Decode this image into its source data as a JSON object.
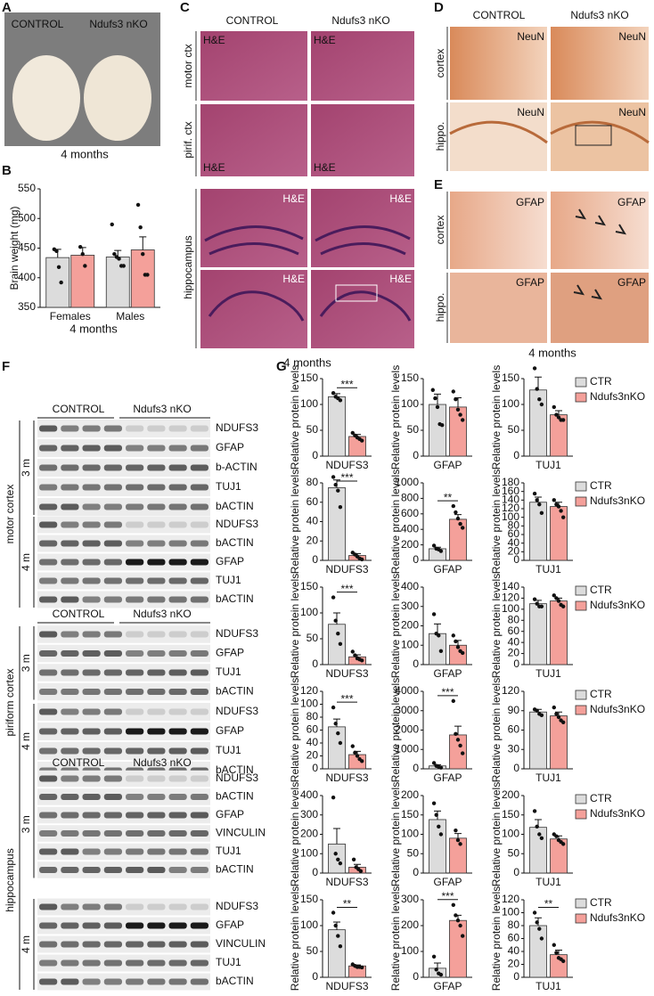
{
  "figure": {
    "A": {
      "label": "A",
      "columns": [
        "CONTROL",
        "Ndufs3 nKO"
      ],
      "caption": "4  months"
    },
    "B": {
      "label": "B",
      "caption": "4  months"
    },
    "C": {
      "label": "C",
      "columns": [
        "CONTROL",
        "Ndufs3 nKO"
      ],
      "rows": [
        "motor ctx",
        "pirif. ctx",
        "hippocampus"
      ],
      "stain": "H&E",
      "caption": "4 months"
    },
    "D": {
      "label": "D",
      "columns": [
        "CONTROL",
        "Ndufs3 nKO"
      ],
      "rows": [
        "cortex",
        "hippo."
      ],
      "stain": "NeuN"
    },
    "E": {
      "label": "E",
      "rows": [
        "cortex",
        "hippo."
      ],
      "stain": "GFAP",
      "caption": "4 months"
    },
    "F": {
      "label": "F",
      "regions": [
        {
          "name": "motor cortex",
          "columns": [
            "CONTROL",
            "Ndufs3 nKO"
          ],
          "blocks": [
            {
              "time": "3 m",
              "bands": [
                "NDUFS3",
                "GFAP",
                "b-ACTIN",
                "TUJ1",
                "bACTIN"
              ]
            },
            {
              "time": "4 m",
              "bands": [
                "NDUFS3",
                "bACTIN",
                "GFAP",
                "TUJ1",
                "bACTIN"
              ]
            }
          ]
        },
        {
          "name": "piriform cortex",
          "columns": [
            "CONTROL",
            "Ndufs3 nKO"
          ],
          "blocks": [
            {
              "time": "3 m",
              "bands": [
                "NDUFS3",
                "GFAP",
                "TUJ1",
                "bACTIN"
              ]
            },
            {
              "time": "4 m",
              "bands": [
                "NDUFS3",
                "GFAP",
                "TUJ1",
                "bACTIN"
              ]
            }
          ]
        },
        {
          "name": "hippocampus",
          "columns": [
            "CONTROL",
            "Ndufs3 nKO"
          ],
          "blocks": [
            {
              "time": "3 m",
              "bands": [
                "NDUFS3",
                "bACTIN",
                "GFAP",
                "VINCULIN",
                "TUJ1",
                "bACTIN"
              ]
            },
            {
              "time": "4 m",
              "bands": [
                "NDUFS3",
                "GFAP",
                "VINCULIN",
                "TUJ1",
                "bACTIN"
              ]
            }
          ]
        }
      ]
    },
    "G": {
      "label": "G"
    }
  },
  "chart_data": [
    {
      "type": "bar",
      "ylabel": "Brain weight (mg)",
      "categories": [
        "Females",
        "Males"
      ],
      "ylim": [
        350,
        550
      ],
      "yticks": [
        350,
        400,
        450,
        500,
        550
      ],
      "series": [
        {
          "color": "#dcdcdc",
          "values": [
            434,
            435
          ],
          "errors": [
            14,
            11
          ],
          "points": [
            [
              448,
              445,
              418,
              392
            ],
            [
              490,
              440,
              435,
              432,
              420,
              420
            ]
          ]
        },
        {
          "color": "#f4a09a",
          "values": [
            438,
            447
          ],
          "errors": [
            13,
            22
          ],
          "points": [
            [
              452,
              440,
              420
            ],
            [
              523,
              485,
              440,
              405,
              405
            ]
          ]
        }
      ]
    },
    {
      "type": "bar",
      "ylabel": "Relative protein levels",
      "xlabel": "NDUFS3",
      "ylim": [
        0,
        150
      ],
      "yticks": [
        0,
        50,
        100,
        150
      ],
      "significance": "***",
      "series": [
        {
          "color": "#dcdcdc",
          "values": [
            115
          ],
          "errors": [
            6
          ],
          "points": [
            [
              122,
              115,
              112,
              108
            ]
          ]
        },
        {
          "color": "#f4a09a",
          "values": [
            38
          ],
          "errors": [
            4
          ],
          "points": [
            [
              45,
              40,
              36,
              33,
              30
            ]
          ]
        }
      ]
    },
    {
      "type": "bar",
      "ylabel": "Relative protein levels",
      "xlabel": "GFAP",
      "ylim": [
        0,
        150
      ],
      "yticks": [
        0,
        50,
        100,
        150
      ],
      "series": [
        {
          "color": "#dcdcdc",
          "values": [
            100
          ],
          "errors": [
            20
          ],
          "points": [
            [
              128,
              112,
              95,
              62,
              60
            ]
          ]
        },
        {
          "color": "#f4a09a",
          "values": [
            95
          ],
          "errors": [
            18
          ],
          "points": [
            [
              125,
              110,
              90,
              80,
              70
            ]
          ]
        }
      ]
    },
    {
      "type": "bar",
      "ylabel": "Relative protein levels",
      "xlabel": "TUJ1",
      "ylim": [
        0,
        150
      ],
      "yticks": [
        0,
        50,
        100,
        150
      ],
      "series": [
        {
          "name": "CTR",
          "color": "#dcdcdc",
          "values": [
            128
          ],
          "errors": [
            25
          ],
          "points": [
            [
              170,
              130,
              110,
              100
            ]
          ]
        },
        {
          "name": "Ndufs3nKO",
          "color": "#f4a09a",
          "values": [
            80
          ],
          "errors": [
            8
          ],
          "points": [
            [
              95,
              80,
              75,
              70,
              70
            ]
          ]
        }
      ]
    },
    {
      "type": "bar",
      "ylabel": "Relative protein levels",
      "xlabel": "NDUFS3",
      "ylim": [
        0,
        80
      ],
      "yticks": [
        0,
        20,
        40,
        60,
        80
      ],
      "significance": "***",
      "series": [
        {
          "color": "#dcdcdc",
          "values": [
            75
          ],
          "errors": [
            8
          ],
          "points": [
            [
              86,
              78,
              72,
              55
            ]
          ]
        },
        {
          "color": "#f4a09a",
          "values": [
            5
          ],
          "errors": [
            2
          ],
          "points": [
            [
              8,
              6,
              4,
              2,
              1
            ]
          ]
        }
      ]
    },
    {
      "type": "bar",
      "ylabel": "Relative protein levels",
      "xlabel": "GFAP",
      "ylim": [
        0,
        1000
      ],
      "yticks": [
        0,
        200,
        400,
        600,
        800,
        1000
      ],
      "significance": "**",
      "series": [
        {
          "color": "#dcdcdc",
          "values": [
            150
          ],
          "errors": [
            20
          ],
          "points": [
            [
              190,
              150,
              140,
              120
            ]
          ]
        },
        {
          "color": "#f4a09a",
          "values": [
            530
          ],
          "errors": [
            60
          ],
          "points": [
            [
              700,
              620,
              540,
              470,
              420
            ]
          ]
        }
      ]
    },
    {
      "type": "bar",
      "ylabel": "Relative protein levels",
      "xlabel": "TUJ1",
      "ylim": [
        0,
        180
      ],
      "yticks": [
        0,
        20,
        40,
        60,
        80,
        100,
        120,
        140,
        160,
        180
      ],
      "series": [
        {
          "name": "CTR",
          "color": "#dcdcdc",
          "values": [
            135
          ],
          "errors": [
            12
          ],
          "points": [
            [
              155,
              140,
              130,
              110
            ]
          ]
        },
        {
          "name": "Ndufs3nKO",
          "color": "#f4a09a",
          "values": [
            125
          ],
          "errors": [
            10
          ],
          "points": [
            [
              140,
              130,
              125,
              115,
              100
            ]
          ]
        }
      ]
    },
    {
      "type": "bar",
      "ylabel": "Relative protein levels",
      "xlabel": "NDUFS3",
      "ylim": [
        0,
        150
      ],
      "yticks": [
        0,
        50,
        100,
        150
      ],
      "significance": "***",
      "series": [
        {
          "color": "#dcdcdc",
          "values": [
            78
          ],
          "errors": [
            22
          ],
          "points": [
            [
              130,
              85,
              60,
              40
            ]
          ]
        },
        {
          "color": "#f4a09a",
          "values": [
            15
          ],
          "errors": [
            4
          ],
          "points": [
            [
              25,
              18,
              12,
              10,
              8
            ]
          ]
        }
      ]
    },
    {
      "type": "bar",
      "ylabel": "Relative protein levels",
      "xlabel": "GFAP",
      "ylim": [
        0,
        400
      ],
      "yticks": [
        0,
        100,
        200,
        300,
        400
      ],
      "series": [
        {
          "color": "#dcdcdc",
          "values": [
            160
          ],
          "errors": [
            50
          ],
          "points": [
            [
              260,
              160,
              150,
              70
            ]
          ]
        },
        {
          "color": "#f4a09a",
          "values": [
            100
          ],
          "errors": [
            25
          ],
          "points": [
            [
              150,
              120,
              90,
              70,
              60
            ]
          ]
        }
      ]
    },
    {
      "type": "bar",
      "ylabel": "Relative protein levels",
      "xlabel": "TUJ1",
      "ylim": [
        0,
        140
      ],
      "yticks": [
        0,
        20,
        40,
        60,
        80,
        100,
        120,
        140
      ],
      "series": [
        {
          "name": "CTR",
          "color": "#dcdcdc",
          "values": [
            110
          ],
          "errors": [
            6
          ],
          "points": [
            [
              118,
              110,
              105,
              105
            ]
          ]
        },
        {
          "name": "Ndufs3nKO",
          "color": "#f4a09a",
          "values": [
            115
          ],
          "errors": [
            5
          ],
          "points": [
            [
              125,
              120,
              115,
              108,
              105
            ]
          ]
        }
      ]
    },
    {
      "type": "bar",
      "ylabel": "Relative protein levels",
      "xlabel": "NDUFS3",
      "ylim": [
        0,
        120
      ],
      "yticks": [
        0,
        20,
        40,
        60,
        80,
        100,
        120
      ],
      "significance": "***",
      "series": [
        {
          "color": "#dcdcdc",
          "values": [
            65
          ],
          "errors": [
            12
          ],
          "points": [
            [
              95,
              70,
              55,
              40
            ]
          ]
        },
        {
          "color": "#f4a09a",
          "values": [
            22
          ],
          "errors": [
            5
          ],
          "points": [
            [
              35,
              25,
              20,
              15,
              12
            ]
          ]
        }
      ]
    },
    {
      "type": "bar",
      "ylabel": "Relative protein levels",
      "xlabel": "GFAP",
      "ylim": [
        0,
        4000
      ],
      "yticks": [
        0,
        1000,
        2000,
        3000,
        4000
      ],
      "significance": "***",
      "series": [
        {
          "color": "#dcdcdc",
          "values": [
            150
          ],
          "errors": [
            60
          ],
          "points": [
            [
              300,
              150,
              100,
              60
            ]
          ]
        },
        {
          "color": "#f4a09a",
          "values": [
            1750
          ],
          "errors": [
            450
          ],
          "points": [
            [
              3500,
              1800,
              1500,
              1200,
              800
            ]
          ]
        }
      ]
    },
    {
      "type": "bar",
      "ylabel": "Relative protein levels",
      "xlabel": "TUJ1",
      "ylim": [
        0,
        120
      ],
      "yticks": [
        0,
        30,
        60,
        90,
        120
      ],
      "series": [
        {
          "name": "CTR",
          "color": "#dcdcdc",
          "values": [
            88
          ],
          "errors": [
            4
          ],
          "points": [
            [
              92,
              90,
              85,
              83
            ]
          ]
        },
        {
          "name": "Ndufs3nKO",
          "color": "#f4a09a",
          "values": [
            82
          ],
          "errors": [
            6
          ],
          "points": [
            [
              95,
              85,
              80,
              75,
              72
            ]
          ]
        }
      ]
    },
    {
      "type": "bar",
      "ylabel": "Relative protein levels",
      "xlabel": "NDUFS3",
      "ylim": [
        0,
        400
      ],
      "yticks": [
        0,
        100,
        200,
        300,
        400
      ],
      "series": [
        {
          "color": "#dcdcdc",
          "values": [
            150
          ],
          "errors": [
            80
          ],
          "points": [
            [
              390,
              100,
              70,
              50
            ]
          ]
        },
        {
          "color": "#f4a09a",
          "values": [
            30
          ],
          "errors": [
            15
          ],
          "points": [
            [
              70,
              30,
              20,
              10
            ]
          ]
        }
      ]
    },
    {
      "type": "bar",
      "ylabel": "Relative protein levels",
      "xlabel": "GFAP",
      "ylim": [
        0,
        200
      ],
      "yticks": [
        0,
        50,
        100,
        150,
        200
      ],
      "series": [
        {
          "color": "#dcdcdc",
          "values": [
            138
          ],
          "errors": [
            22
          ],
          "points": [
            [
              180,
              150,
              120,
              100
            ]
          ]
        },
        {
          "color": "#f4a09a",
          "values": [
            90
          ],
          "errors": [
            12
          ],
          "points": [
            [
              110,
              85,
              75
            ]
          ]
        }
      ]
    },
    {
      "type": "bar",
      "ylabel": "Relative protein levels",
      "xlabel": "TUJ1",
      "ylim": [
        0,
        200
      ],
      "yticks": [
        0,
        50,
        100,
        150,
        200
      ],
      "series": [
        {
          "name": "CTR",
          "color": "#dcdcdc",
          "values": [
            118
          ],
          "errors": [
            20
          ],
          "points": [
            [
              160,
              120,
              100,
              90
            ]
          ]
        },
        {
          "name": "Ndufs3nKO",
          "color": "#f4a09a",
          "values": [
            88
          ],
          "errors": [
            8
          ],
          "points": [
            [
              100,
              95,
              85,
              80,
              75
            ]
          ]
        }
      ]
    },
    {
      "type": "bar",
      "ylabel": "Relative protein levels",
      "xlabel": "NDUFS3",
      "ylim": [
        0,
        150
      ],
      "yticks": [
        0,
        50,
        100,
        150
      ],
      "significance": "**",
      "series": [
        {
          "color": "#dcdcdc",
          "values": [
            92
          ],
          "errors": [
            15
          ],
          "points": [
            [
              125,
              100,
              80,
              60
            ]
          ]
        },
        {
          "color": "#f4a09a",
          "values": [
            22
          ],
          "errors": [
            2
          ],
          "points": [
            [
              25,
              22,
              20,
              20,
              19
            ]
          ]
        }
      ]
    },
    {
      "type": "bar",
      "ylabel": "Relative protein levels",
      "xlabel": "GFAP",
      "ylim": [
        0,
        300
      ],
      "yticks": [
        0,
        100,
        200,
        300
      ],
      "significance": "***",
      "series": [
        {
          "color": "#dcdcdc",
          "values": [
            35
          ],
          "errors": [
            20
          ],
          "points": [
            [
              80,
              30,
              15,
              10
            ]
          ]
        },
        {
          "color": "#f4a09a",
          "values": [
            220
          ],
          "errors": [
            20
          ],
          "points": [
            [
              280,
              240,
              220,
              200,
              160
            ]
          ]
        }
      ]
    },
    {
      "type": "bar",
      "ylabel": "Relative protein levels",
      "xlabel": "TUJ1",
      "ylim": [
        0,
        120
      ],
      "yticks": [
        0,
        20,
        40,
        60,
        80,
        100,
        120
      ],
      "significance": "**",
      "series": [
        {
          "name": "CTR",
          "color": "#dcdcdc",
          "values": [
            80
          ],
          "errors": [
            12
          ],
          "points": [
            [
              100,
              85,
              75,
              60
            ]
          ]
        },
        {
          "name": "Ndufs3nKO",
          "color": "#f4a09a",
          "values": [
            35
          ],
          "errors": [
            7
          ],
          "points": [
            [
              50,
              38,
              30,
              28,
              25
            ]
          ]
        }
      ]
    }
  ]
}
